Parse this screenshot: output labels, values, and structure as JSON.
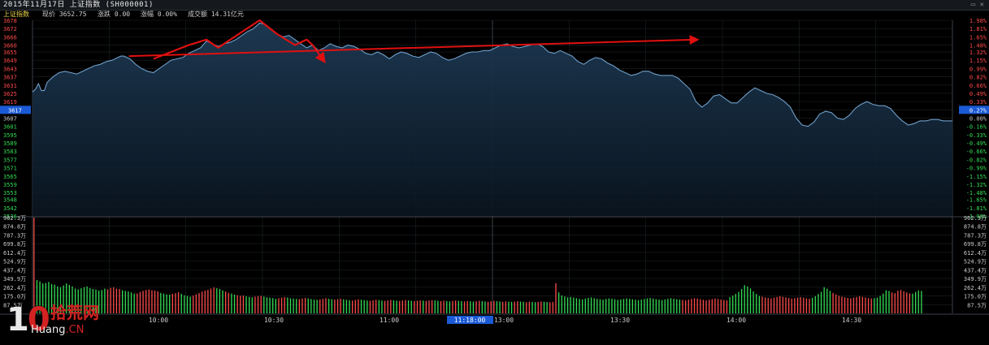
{
  "header": {
    "title": "2015年11月17日  上证指数 (SH000001)",
    "window_controls": "▭  ✕"
  },
  "info": {
    "name": "上证指数",
    "price": "现价 3652.75",
    "change": "涨跌 0.00",
    "pct": "涨幅 0.00%",
    "turnover": "成交额 14.31亿元"
  },
  "logo": {
    "number_prefix": "1",
    "number_suffix": "0",
    "cn_text": "拾荒网",
    "en_prefix": "Huang",
    "en_suffix": ".CN"
  },
  "colors": {
    "background": "#000000",
    "up": "#ff4a4a",
    "down": "#33dd55",
    "line": "#6f9fc9",
    "area_top": "#1e3a55",
    "grid": "#1d2226",
    "annotation": "#e01010",
    "highlight": "#1b5ad6"
  },
  "chart_data": {
    "type": "line",
    "title": "上证指数 分时",
    "price_axis": {
      "ylim": [
        3536,
        3678
      ],
      "ticks": [
        3678,
        3672,
        3666,
        3660,
        3655,
        3649,
        3643,
        3637,
        3631,
        3625,
        3619,
        3613,
        3607,
        3601,
        3595,
        3589,
        3583,
        3577,
        3571,
        3565,
        3559,
        3553,
        3548,
        3542,
        3536
      ],
      "current_label": "3617"
    },
    "percent_axis": {
      "ticks": [
        "1.98%",
        "1.81%",
        "1.65%",
        "1.48%",
        "1.32%",
        "1.15%",
        "0.99%",
        "0.82%",
        "0.66%",
        "0.49%",
        "0.33%",
        "0.16%",
        "0.00%",
        "-0.16%",
        "-0.33%",
        "-0.49%",
        "-0.66%",
        "-0.82%",
        "-0.99%",
        "-1.15%",
        "-1.32%",
        "-1.48%",
        "-1.65%",
        "-1.81%",
        "-1.98%"
      ],
      "current_label": "0.27%"
    },
    "volume_axis": {
      "ylim": [
        0,
        962.3
      ],
      "ticks": [
        "962.3万",
        "874.8万",
        "787.3万",
        "699.8万",
        "612.4万",
        "524.9万",
        "437.4万",
        "349.9万",
        "262.4万",
        "175.0万",
        "87.5万"
      ]
    },
    "time_labels": [
      "10:00",
      "10:30",
      "11:00",
      "13:00",
      "13:30",
      "14:00",
      "14:30"
    ],
    "highlight_time": "11:18:00",
    "price_series": [
      [
        0,
        3626
      ],
      [
        1,
        3628
      ],
      [
        2,
        3632
      ],
      [
        3,
        3627
      ],
      [
        4,
        3627
      ],
      [
        5,
        3633
      ],
      [
        7,
        3637
      ],
      [
        9,
        3640
      ],
      [
        11,
        3641
      ],
      [
        13,
        3640
      ],
      [
        15,
        3639
      ],
      [
        17,
        3641
      ],
      [
        19,
        3643
      ],
      [
        21,
        3645
      ],
      [
        23,
        3646
      ],
      [
        25,
        3648
      ],
      [
        27,
        3649
      ],
      [
        29,
        3651
      ],
      [
        30,
        3652
      ],
      [
        31,
        3652
      ],
      [
        33,
        3650
      ],
      [
        35,
        3646
      ],
      [
        37,
        3643
      ],
      [
        39,
        3641
      ],
      [
        41,
        3640
      ],
      [
        43,
        3643
      ],
      [
        45,
        3646
      ],
      [
        47,
        3649
      ],
      [
        49,
        3650
      ],
      [
        51,
        3651
      ],
      [
        53,
        3654
      ],
      [
        55,
        3656
      ],
      [
        57,
        3658
      ],
      [
        59,
        3663
      ],
      [
        61,
        3661
      ],
      [
        63,
        3659
      ],
      [
        65,
        3661
      ],
      [
        67,
        3662
      ],
      [
        69,
        3664
      ],
      [
        71,
        3667
      ],
      [
        73,
        3670
      ],
      [
        75,
        3672
      ],
      [
        77,
        3676
      ],
      [
        79,
        3675
      ],
      [
        81,
        3671
      ],
      [
        83,
        3668
      ],
      [
        85,
        3666
      ],
      [
        87,
        3667
      ],
      [
        89,
        3664
      ],
      [
        91,
        3661
      ],
      [
        93,
        3658
      ],
      [
        95,
        3660
      ],
      [
        97,
        3656
      ],
      [
        99,
        3658
      ],
      [
        101,
        3661
      ],
      [
        103,
        3659
      ],
      [
        105,
        3658
      ],
      [
        107,
        3660
      ],
      [
        109,
        3659
      ],
      [
        111,
        3657
      ],
      [
        113,
        3654
      ],
      [
        115,
        3653
      ],
      [
        117,
        3655
      ],
      [
        119,
        3653
      ],
      [
        121,
        3650
      ],
      [
        123,
        3653
      ],
      [
        125,
        3655
      ],
      [
        127,
        3654
      ],
      [
        129,
        3652
      ],
      [
        131,
        3651
      ],
      [
        133,
        3653
      ],
      [
        135,
        3655
      ],
      [
        137,
        3654
      ],
      [
        139,
        3651
      ],
      [
        141,
        3649
      ],
      [
        143,
        3650
      ],
      [
        145,
        3652
      ],
      [
        147,
        3654
      ],
      [
        149,
        3655
      ],
      [
        151,
        3655
      ],
      [
        153,
        3656
      ],
      [
        155,
        3656
      ],
      [
        157,
        3658
      ],
      [
        159,
        3660
      ],
      [
        161,
        3661
      ],
      [
        163,
        3659
      ],
      [
        165,
        3658
      ],
      [
        167,
        3659
      ],
      [
        169,
        3660
      ],
      [
        171,
        3661
      ],
      [
        173,
        3659
      ],
      [
        175,
        3655
      ],
      [
        177,
        3654
      ],
      [
        179,
        3656
      ],
      [
        181,
        3654
      ],
      [
        183,
        3652
      ],
      [
        185,
        3648
      ],
      [
        187,
        3646
      ],
      [
        189,
        3649
      ],
      [
        191,
        3651
      ],
      [
        193,
        3650
      ],
      [
        195,
        3647
      ],
      [
        197,
        3645
      ],
      [
        199,
        3642
      ],
      [
        201,
        3640
      ],
      [
        203,
        3638
      ],
      [
        205,
        3639
      ],
      [
        207,
        3641
      ],
      [
        209,
        3641
      ],
      [
        211,
        3639
      ],
      [
        213,
        3638
      ],
      [
        215,
        3638
      ],
      [
        217,
        3638
      ],
      [
        219,
        3636
      ],
      [
        221,
        3632
      ],
      [
        223,
        3628
      ],
      [
        225,
        3619
      ],
      [
        227,
        3615
      ],
      [
        229,
        3618
      ],
      [
        231,
        3623
      ],
      [
        233,
        3624
      ],
      [
        235,
        3621
      ],
      [
        237,
        3618
      ],
      [
        239,
        3618
      ],
      [
        241,
        3622
      ],
      [
        243,
        3626
      ],
      [
        245,
        3629
      ],
      [
        247,
        3627
      ],
      [
        249,
        3625
      ],
      [
        251,
        3624
      ],
      [
        253,
        3622
      ],
      [
        255,
        3619
      ],
      [
        257,
        3615
      ],
      [
        259,
        3607
      ],
      [
        261,
        3602
      ],
      [
        263,
        3601
      ],
      [
        265,
        3604
      ],
      [
        267,
        3610
      ],
      [
        269,
        3612
      ],
      [
        271,
        3611
      ],
      [
        273,
        3607
      ],
      [
        275,
        3606
      ],
      [
        277,
        3609
      ],
      [
        279,
        3614
      ],
      [
        281,
        3617
      ],
      [
        283,
        3619
      ],
      [
        285,
        3617
      ],
      [
        287,
        3616
      ],
      [
        289,
        3616
      ],
      [
        291,
        3614
      ],
      [
        293,
        3609
      ],
      [
        295,
        3605
      ],
      [
        297,
        3602
      ],
      [
        299,
        3603
      ],
      [
        301,
        3605
      ],
      [
        303,
        3605
      ],
      [
        305,
        3606
      ],
      [
        307,
        3606
      ],
      [
        309,
        3605
      ],
      [
        311,
        3605
      ],
      [
        312,
        3605
      ]
    ],
    "volume_series": [
      "up,962",
      "down,335",
      "down,320",
      "down,300",
      "down,305",
      "down,315",
      "down,295",
      "down,288",
      "down,270",
      "down,262",
      "down,280",
      "down,300",
      "down,285",
      "down,270",
      "down,250",
      "down,240",
      "down,252",
      "down,262",
      "down,270",
      "down,255",
      "down,245",
      "down,240",
      "down,228",
      "down,235",
      "down,248",
      "up,240",
      "up,255",
      "up,262",
      "up,248",
      "up,245",
      "down,232",
      "down,225",
      "down,220",
      "down,210",
      "down,198",
      "up,200",
      "up,215",
      "up,225",
      "up,235",
      "up,240",
      "up,232",
      "up,228",
      "up,221",
      "down,205",
      "down,198",
      "down,190",
      "down,188",
      "up,196",
      "up,203",
      "up,212",
      "down,195",
      "down,182",
      "down,175",
      "down,168",
      "up,178",
      "up,190",
      "up,204",
      "up,218",
      "up,228",
      "up,236",
      "up,249",
      "up,260",
      "down,252",
      "down,245",
      "down,231",
      "up,219",
      "up,206",
      "down,198",
      "down,188",
      "up,182",
      "up,176",
      "up,179",
      "down,171",
      "down,165",
      "down,160",
      "up,168",
      "up,172",
      "up,175",
      "down,169",
      "down,161",
      "down,158",
      "down,153",
      "down,146",
      "up,152",
      "up,158",
      "up,164",
      "down,159",
      "down,152",
      "down,148",
      "down,145",
      "up,142",
      "up,149",
      "up,156",
      "down,150",
      "down,144",
      "down,139",
      "down,136",
      "up,140",
      "up,146",
      "up,152",
      "down,147",
      "down,142",
      "up,139",
      "up,143",
      "up,147",
      "down,141",
      "down,136",
      "down,132",
      "up,128",
      "up,135",
      "up,142",
      "down,138",
      "down,133",
      "down,129",
      "up,126",
      "up,131",
      "up,137",
      "down,133",
      "down,128",
      "up,125",
      "up,130",
      "up,135",
      "down,131",
      "down,127",
      "up,124",
      "up,129",
      "up,134",
      "down,130",
      "down,126",
      "up,123",
      "up,127",
      "up,131",
      "down,128",
      "up,125",
      "up,129",
      "up,133",
      "down,130",
      "down,126",
      "up,123",
      "up,127",
      "down,124",
      "down,121",
      "up,125",
      "up,129",
      "down,126",
      "down,123",
      "up,120",
      "up,124",
      "down,121",
      "down,118",
      "up,122",
      "up,126",
      "down,123",
      "down,120",
      "up,117",
      "up,121",
      "up,125",
      "down,122",
      "down,119",
      "up,116",
      "up,120",
      "down,117",
      "down,115",
      "up,118",
      "up,122",
      "down,119",
      "down,116",
      "up,113",
      "up,117",
      "down,114",
      "down,112",
      "up,115",
      "up,119",
      "down,116",
      "down,114",
      "up,111",
      "up,115",
      "up,303",
      "down,210",
      "down,180",
      "down,170",
      "down,160",
      "down,165",
      "down,158",
      "down,152",
      "down,145",
      "down,140",
      "down,148",
      "down,155",
      "down,160",
      "down,152",
      "down,146",
      "down,142",
      "down,138",
      "down,145",
      "down,150",
      "down,147",
      "down,142",
      "down,136",
      "down,140",
      "down,145",
      "down,150",
      "down,146",
      "down,141",
      "down,137",
      "down,133",
      "down,139",
      "down,145",
      "down,150",
      "down,154",
      "down,148",
      "down,143",
      "down,138",
      "down,134",
      "down,140",
      "down,146",
      "down,152",
      "down,147",
      "down,142",
      "down,138",
      "up,135",
      "up,130",
      "up,138",
      "up,145",
      "up,152",
      "up,148",
      "up,142",
      "up,136",
      "up,131",
      "up,137",
      "up,143",
      "up,149",
      "up,144",
      "up,139",
      "up,134",
      "up,130",
      "down,162",
      "down,178",
      "down,195",
      "down,215",
      "down,244",
      "down,283",
      "down,270",
      "down,250",
      "down,220",
      "down,195",
      "down,175",
      "up,168",
      "up,160",
      "up,154",
      "up,149",
      "up,157",
      "up,165",
      "up,172",
      "up,166",
      "up,160",
      "up,154",
      "up,148",
      "up,152",
      "up,158",
      "up,163",
      "up,157",
      "up,151",
      "up,146",
      "down,156",
      "down,172",
      "down,194",
      "down,216",
      "down,262",
      "down,248",
      "down,226",
      "up,205",
      "up,190",
      "up,176",
      "up,168",
      "up,161",
      "up,155",
      "up,150",
      "up,158",
      "up,165",
      "up,171",
      "up,166",
      "up,160",
      "up,154",
      "up,149",
      "down,153",
      "down,158",
      "down,175",
      "down,198",
      "down,232",
      "down,224",
      "up,210",
      "up,203",
      "up,228",
      "up,235",
      "up,222",
      "up,210",
      "up,200",
      "down,198",
      "down,215",
      "down,230",
      "down,225"
    ],
    "annotations": [
      {
        "type": "trend_arrow",
        "from": [
          41,
          3652
        ],
        "to": [
          220,
          3664
        ]
      },
      {
        "type": "zigzag",
        "points": [
          [
            41,
            3650
          ],
          [
            53,
            3660
          ],
          [
            59,
            3664
          ],
          [
            61,
            3661
          ],
          [
            63,
            3658
          ],
          [
            65,
            3661
          ],
          [
            77,
            3678
          ],
          [
            83,
            3668
          ],
          [
            89,
            3660
          ],
          [
            93,
            3664
          ],
          [
            95,
            3660
          ],
          [
            99,
            3648
          ]
        ]
      }
    ]
  }
}
